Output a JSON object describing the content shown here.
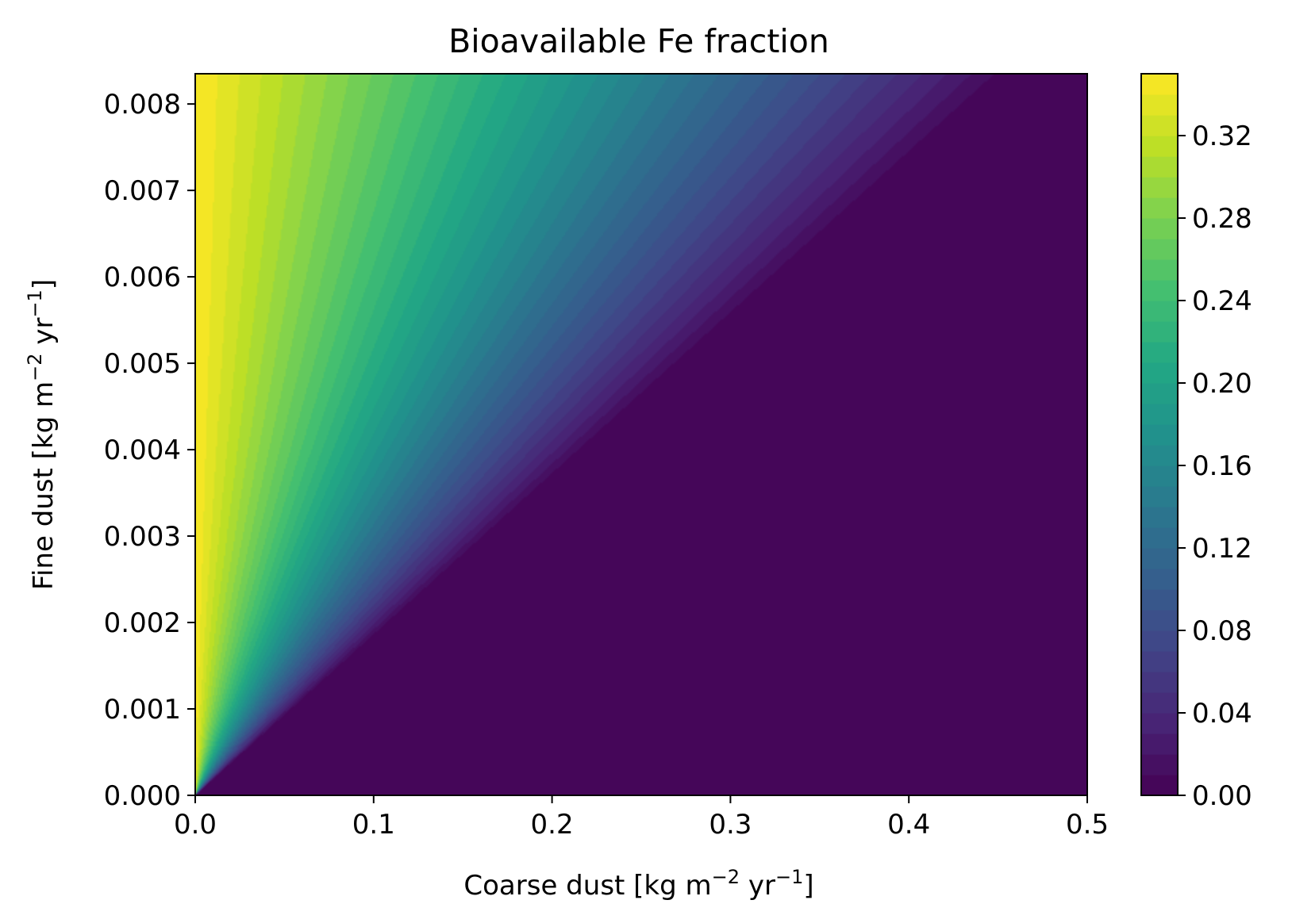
{
  "chart_data": {
    "type": "heatmap",
    "title": "Bioavailable Fe fraction",
    "xlabel": {
      "base": "Coarse dust [kg m",
      "exp1": "−2",
      "mid": " yr",
      "exp2": "−1",
      "end": "]"
    },
    "ylabel": {
      "base": "Fine dust [kg m",
      "exp1": "−2",
      "mid": " yr",
      "exp2": "−1",
      "end": "]"
    },
    "xlim": [
      0,
      0.5
    ],
    "ylim": [
      0,
      0.00835
    ],
    "x_ticks": [
      {
        "value": 0.0,
        "label": "0.0"
      },
      {
        "value": 0.1,
        "label": "0.1"
      },
      {
        "value": 0.2,
        "label": "0.2"
      },
      {
        "value": 0.3,
        "label": "0.3"
      },
      {
        "value": 0.4,
        "label": "0.4"
      },
      {
        "value": 0.5,
        "label": "0.5"
      }
    ],
    "y_ticks": [
      {
        "value": 0.0,
        "label": "0.000"
      },
      {
        "value": 0.001,
        "label": "0.001"
      },
      {
        "value": 0.002,
        "label": "0.002"
      },
      {
        "value": 0.003,
        "label": "0.003"
      },
      {
        "value": 0.004,
        "label": "0.004"
      },
      {
        "value": 0.005,
        "label": "0.005"
      },
      {
        "value": 0.006,
        "label": "0.006"
      },
      {
        "value": 0.007,
        "label": "0.007"
      },
      {
        "value": 0.008,
        "label": "0.008"
      }
    ],
    "colorbar": {
      "vmin": 0.0,
      "vmax": 0.35,
      "levels": 35,
      "colormap": "viridis",
      "ticks": [
        {
          "value": 0.0,
          "label": "0.00"
        },
        {
          "value": 0.04,
          "label": "0.04"
        },
        {
          "value": 0.08,
          "label": "0.08"
        },
        {
          "value": 0.12,
          "label": "0.12"
        },
        {
          "value": 0.16,
          "label": "0.16"
        },
        {
          "value": 0.2,
          "label": "0.20"
        },
        {
          "value": 0.24,
          "label": "0.24"
        },
        {
          "value": 0.28,
          "label": "0.28"
        },
        {
          "value": 0.32,
          "label": "0.32"
        }
      ]
    },
    "field": {
      "description_values": "value = 0.35 - 0.35*angle_fraction; zero below diagonal",
      "max_value": 0.35,
      "zero_boundary_slope_fine_per_coarse": 0.01822
    },
    "grid": false
  },
  "colors": {
    "viridis": [
      "#440154",
      "#482475",
      "#414487",
      "#355f8d",
      "#2a788e",
      "#21918c",
      "#22a884",
      "#44bf70",
      "#7ad151",
      "#bddf26",
      "#fde725"
    ]
  }
}
